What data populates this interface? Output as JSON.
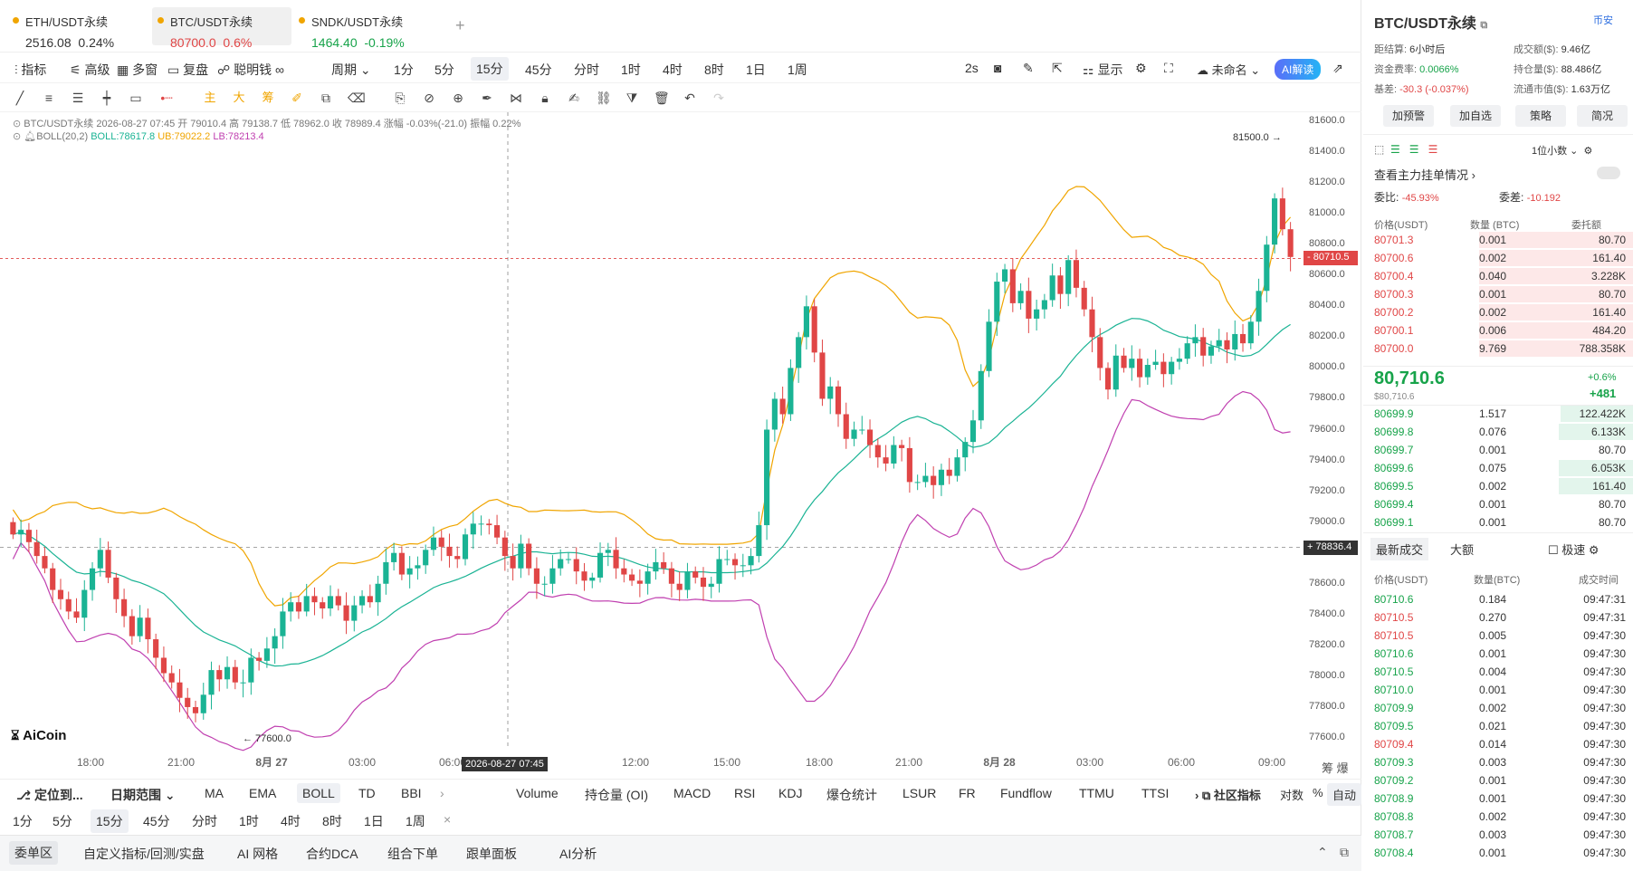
{
  "tabs": [
    {
      "name": "ETH/USDT永续",
      "price": "2516.08",
      "change": "0.24%",
      "dir": "up"
    },
    {
      "name": "BTC/USDT永续",
      "price": "80700.0",
      "change": "0.6%",
      "dir": "dn"
    },
    {
      "name": "SNDK/USDT永续",
      "price": "1464.40",
      "change": "-0.19%",
      "dir": "up"
    }
  ],
  "toolbar": {
    "indicators": "指标",
    "advanced": "高级",
    "multi": "多窗",
    "review": "复盘",
    "smart": "聪明钱",
    "period": "周期",
    "intervals": [
      "1分",
      "5分",
      "15分",
      "45分",
      "分时",
      "1时",
      "4时",
      "8时",
      "1日",
      "1周"
    ],
    "active": "15分",
    "speed": "2s",
    "display": "显示",
    "unnamed": "未命名",
    "ai": "AI解读"
  },
  "drawtools": {
    "zhu": "主",
    "da": "大",
    "chou": "筹"
  },
  "chart_info": {
    "line1": "BTC/USDT永续  2026-08-27 07:45  开 79010.4  高 79138.7  低 78962.0  收 78989.4  涨幅 -0.03%(-21.0)  振幅 0.22%",
    "boll_label": "BOLL(20,2)",
    "boll_mid": "BOLL:78617.8",
    "boll_ub": "UB:79022.2",
    "boll_lb": "LB:78213.4"
  },
  "chart_data": {
    "type": "candlestick",
    "yticks": [
      "81600.0",
      "81400.0",
      "81200.0",
      "81000.0",
      "80800.0",
      "80600.0",
      "80400.0",
      "80200.0",
      "80000.0",
      "79800.0",
      "79600.0",
      "79400.0",
      "79200.0",
      "79000.0",
      "78800.0",
      "78600.0",
      "78400.0",
      "78200.0",
      "78000.0",
      "77800.0",
      "77600.0"
    ],
    "xticks": [
      "18:00",
      "21:00",
      "8月 27",
      "03:00",
      "06:00",
      "2026-08-27 07:45",
      "12:00",
      "15:00",
      "18:00",
      "21:00",
      "8月 28",
      "03:00",
      "06:00",
      "09:00"
    ],
    "current_price": "80710.5",
    "crosshair_price": "78836.4",
    "high_label": "81500.0",
    "low_label": "77600.0",
    "ylim": [
      77500,
      81700
    ]
  },
  "watermark": "AiCoin",
  "bottom": {
    "locate": "定位到...",
    "range": "日期范围",
    "inds": [
      "MA",
      "EMA",
      "BOLL",
      "TD",
      "BBI"
    ],
    "subs": [
      "Volume",
      "持仓量 (OI)",
      "MACD",
      "RSI",
      "KDJ",
      "爆仓统计",
      "LSUR",
      "FR",
      "Fundflow",
      "TTMU",
      "TTSI"
    ],
    "community": "社区指标",
    "log": "对数",
    "pct": "%",
    "auto": "自动",
    "intervals2": [
      "1分",
      "5分",
      "15分",
      "45分",
      "分时",
      "1时",
      "4时",
      "8时",
      "1日",
      "1周"
    ],
    "tabs3": [
      "委单区",
      "自定义指标/回测/实盘",
      "AI 网格",
      "合约DCA",
      "组合下单",
      "跟单面板",
      "AI分析"
    ]
  },
  "right": {
    "title": "BTC/USDT永续",
    "exchange": "币安",
    "stats": [
      [
        "距结算:",
        "6小时后"
      ],
      [
        "成交额($):",
        "9.46亿"
      ],
      [
        "资金费率:",
        "0.0066%"
      ],
      [
        "持仓量($):",
        "88.486亿"
      ],
      [
        "基差:",
        "-30.3 (-0.037%)"
      ],
      [
        "流通市值($):",
        "1.63万亿"
      ]
    ],
    "btns": [
      "加预警",
      "加自选",
      "策略",
      "简况"
    ],
    "decimals": "1位小数",
    "main_orders": "查看主力挂单情况",
    "weibi_l": "委比:",
    "weibi": "-45.93%",
    "weicha_l": "委差:",
    "weicha": "-10.192",
    "ob_head": [
      "价格(USDT)",
      "数量 (BTC)",
      "委托额"
    ],
    "asks": [
      [
        "80701.3",
        "0.001",
        "80.70"
      ],
      [
        "80700.6",
        "0.002",
        "161.40"
      ],
      [
        "80700.4",
        "0.040",
        "3.228K"
      ],
      [
        "80700.3",
        "0.001",
        "80.70"
      ],
      [
        "80700.2",
        "0.002",
        "161.40"
      ],
      [
        "80700.1",
        "0.006",
        "484.20"
      ],
      [
        "80700.0",
        "9.769",
        "788.358K"
      ]
    ],
    "last": "80,710.6",
    "last_usd": "$80,710.6",
    "last_pct": "+0.6%",
    "last_chg": "+481",
    "bids": [
      [
        "80699.9",
        "1.517",
        "122.422K"
      ],
      [
        "80699.8",
        "0.076",
        "6.133K"
      ],
      [
        "80699.7",
        "0.001",
        "80.70"
      ],
      [
        "80699.6",
        "0.075",
        "6.053K"
      ],
      [
        "80699.5",
        "0.002",
        "161.40"
      ],
      [
        "80699.4",
        "0.001",
        "80.70"
      ],
      [
        "80699.1",
        "0.001",
        "80.70"
      ]
    ],
    "trade_tabs": [
      "最新成交",
      "大额"
    ],
    "fast": "极速",
    "tr_head": [
      "价格(USDT)",
      "数量(BTC)",
      "成交时间"
    ],
    "trades": [
      [
        "80710.6",
        "0.184",
        "09:47:31",
        "up"
      ],
      [
        "80710.5",
        "0.270",
        "09:47:31",
        "dn"
      ],
      [
        "80710.5",
        "0.005",
        "09:47:30",
        "dn"
      ],
      [
        "80710.6",
        "0.001",
        "09:47:30",
        "up"
      ],
      [
        "80710.5",
        "0.004",
        "09:47:30",
        "up"
      ],
      [
        "80710.0",
        "0.001",
        "09:47:30",
        "up"
      ],
      [
        "80709.9",
        "0.002",
        "09:47:30",
        "up"
      ],
      [
        "80709.5",
        "0.021",
        "09:47:30",
        "up"
      ],
      [
        "80709.4",
        "0.014",
        "09:47:30",
        "dn"
      ],
      [
        "80709.3",
        "0.003",
        "09:47:30",
        "up"
      ],
      [
        "80709.2",
        "0.001",
        "09:47:30",
        "up"
      ],
      [
        "80708.9",
        "0.001",
        "09:47:30",
        "up"
      ],
      [
        "80708.8",
        "0.002",
        "09:47:30",
        "up"
      ],
      [
        "80708.7",
        "0.003",
        "09:47:30",
        "up"
      ],
      [
        "80708.4",
        "0.001",
        "09:47:30",
        "up"
      ]
    ]
  }
}
